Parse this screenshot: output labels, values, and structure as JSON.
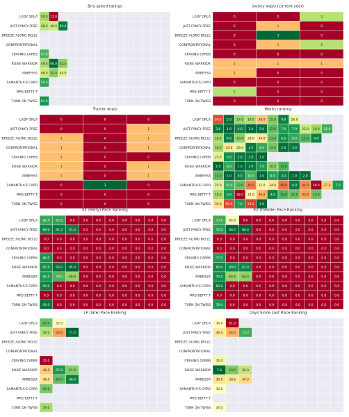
{
  "colormap": [
    "#a50026",
    "#d73027",
    "#f46d43",
    "#fdae61",
    "#fee08b",
    "#ffffbf",
    "#d9ef8b",
    "#a6d96a",
    "#66bd63",
    "#1a9850",
    "#006837"
  ],
  "chart_data": [
    {
      "type": "heatmap",
      "title": "Bris speed ratings",
      "categories": [
        "LADY ORLA",
        "JUST FANCY FREE",
        "BREEZE ALONG BELLE",
        "CONFRONTATIONAL",
        "CRAVING CARBS",
        "ROSIE WARRIOR",
        "AMBESSA",
        "SAMANTHA'S CAPO",
        "MRS BETTY T",
        "TURN ON TWISS"
      ],
      "values": [
        [
          50,
          13
        ],
        [
          48,
          46,
          64
        ],
        [],
        [],
        [
          57
        ],
        [
          49,
          66,
          52
        ],
        [
          46,
          52,
          44
        ],
        [
          59
        ],
        [],
        [
          61
        ]
      ],
      "value_labels": [
        [
          "50.0",
          "13.0"
        ],
        [
          "48.0",
          "46.0",
          "64.0"
        ],
        [],
        [],
        [
          "57.0"
        ],
        [
          "49.0",
          "66.0",
          "52.0"
        ],
        [
          "46.0",
          "52.0",
          "44.0"
        ],
        [
          "59.0"
        ],
        [],
        [
          "61.0"
        ]
      ]
    },
    {
      "type": "heatmap",
      "title": "Jockey w/p/s (current year)",
      "categories": [
        "LADY ORLA",
        "JUST FANCY FREE",
        "BREEZE ALONG BELLE",
        "CONFRONTATIONAL",
        "CRAVING CARBS",
        "ROSIE WARRIOR",
        "AMBESSA",
        "SAMANTHA'S CAPO",
        "MRS BETTY T",
        "TURN ON TWISS"
      ],
      "values": [
        [
          0,
          0,
          2
        ],
        [
          0,
          1,
          0
        ],
        [
          0,
          3,
          0
        ],
        [
          0,
          1,
          2
        ],
        [
          0,
          0,
          0
        ],
        [
          1,
          1,
          1
        ],
        [
          1,
          0,
          0
        ],
        [
          0,
          0,
          0
        ],
        [
          2,
          0,
          0
        ],
        [
          0,
          0,
          0
        ]
      ]
    },
    {
      "type": "heatmap",
      "title": "Trainer w/p/s",
      "categories": [
        "LADY ORLA",
        "JUST FANCY FREE",
        "BREEZE ALONG BELLE",
        "CONFRONTATIONAL",
        "CRAVING CARBS",
        "ROSIE WARRIOR",
        "AMBESSA",
        "SAMANTHA'S CAPO",
        "MRS BETTY T",
        "TURN ON TWISS"
      ],
      "values": [
        [
          0,
          0,
          0
        ],
        [
          0,
          0,
          1
        ],
        [
          1,
          0,
          1
        ],
        [
          1,
          0,
          1
        ],
        [
          1,
          0,
          0
        ],
        [
          1,
          0,
          1
        ],
        [
          1,
          0,
          1
        ],
        [
          0,
          3,
          0
        ],
        [
          0,
          0,
          0
        ],
        [
          0,
          0,
          0
        ]
      ]
    },
    {
      "type": "heatmap",
      "title": "Works ranking",
      "reverse": true,
      "categories": [
        "LADY ORLA",
        "JUST FANCY FREE",
        "BREEZE ALONG BELLE",
        "CONFRONTATIONAL",
        "CRAVING CARBS",
        "ROSIE WARRIOR",
        "AMBESSA",
        "SAMANTHA'S CAPO",
        "MRS BETTY T",
        "TURN ON TWISS"
      ],
      "values": [
        [
          50,
          2,
          17,
          19,
          38,
          15,
          4,
          26
        ],
        [
          3,
          1,
          4,
          1,
          2,
          12,
          7,
          7,
          22,
          18,
          10
        ],
        [
          18,
          4,
          16,
          28,
          34,
          13,
          6,
          9,
          11,
          4
        ],
        [
          18,
          34,
          26,
          3,
          9,
          14,
          2,
          3
        ],
        [
          25,
          6,
          3,
          3,
          1
        ],
        [
          1,
          9,
          1,
          3,
          7,
          16,
          11
        ],
        [
          12,
          1,
          4,
          10,
          1,
          8,
          4,
          1,
          2
        ],
        [
          25,
          10,
          13,
          45,
          32,
          34,
          46,
          4,
          44,
          58,
          37,
          7
        ],
        [
          18,
          6,
          58,
          31,
          40,
          4,
          11,
          13,
          42,
          13
        ],
        [
          35,
          50,
          7,
          51,
          1
        ]
      ],
      "value_labels": [
        [
          "50.0",
          "2.0",
          "17.0",
          "19.0",
          "38.0",
          "15.0",
          "4.0",
          "26.0"
        ],
        [
          "3.0",
          "1.0",
          "4.0",
          "1.0",
          "2.0",
          "12.0",
          "7.0",
          "7.0",
          "22.0",
          "18.0",
          "10.0"
        ],
        [
          "18.0",
          "4.0",
          "16.0",
          "28.0",
          "34.0",
          "13.0",
          "6.0",
          "9.0",
          "11.0",
          "4.0"
        ],
        [
          "18.0",
          "34.0",
          "26.0",
          "3.0",
          "9.0",
          "14.0",
          "2.0",
          "3.0"
        ],
        [
          "25.0",
          "6.0",
          "3.0",
          "3.0",
          "1.0"
        ],
        [
          "1.0",
          "9.0",
          "1.0",
          "3.0",
          "7.0",
          "16.0",
          "11.0"
        ],
        [
          "12.0",
          "1.0",
          "4.0",
          "10.0",
          "1.0",
          "8.0",
          "4.0",
          "1.0",
          "2.0"
        ],
        [
          "25.0",
          "10.0",
          "13.0",
          "45.0",
          "32.0",
          "34.0",
          "46.0",
          "4.0",
          "44.0",
          "58.0",
          "37.0",
          "7.0"
        ],
        [
          "18.0",
          "6.0",
          "58.0",
          "31.0",
          "40.0",
          "4.0",
          "11.0",
          "13.0",
          "42.0",
          "13.0"
        ],
        [
          "35.0",
          "50.0",
          "7.0",
          "51.0",
          "1.0"
        ]
      ]
    },
    {
      "type": "heatmap",
      "title": "E1 (early) Pace Ranking",
      "categories": [
        "LADY ORLA",
        "JUST FANCY FREE",
        "BREEZE ALONG BELLE",
        "CONFRONTATIONAL",
        "CRAVING CARBS",
        "ROSIE WARRIOR",
        "AMBESSA",
        "SAMANTHA'S CAPO",
        "MRS BETTY T",
        "TURN ON TWISS"
      ],
      "values": [
        [
          82,
          83,
          0,
          0,
          0,
          0,
          0,
          0,
          0,
          0
        ],
        [
          89,
          91,
          91,
          0,
          0,
          0,
          0,
          0,
          0,
          0
        ],
        [
          0,
          0,
          0,
          0,
          0,
          0,
          0,
          0,
          0,
          0
        ],
        [
          0,
          0,
          0,
          0,
          0,
          0,
          0,
          0,
          0,
          0
        ],
        [
          86,
          0,
          0,
          0,
          0,
          0,
          0,
          0,
          0,
          0
        ],
        [
          87,
          93,
          95,
          0,
          0,
          0,
          0,
          0,
          0,
          0
        ],
        [
          85,
          79,
          69,
          0,
          0,
          0,
          0,
          0,
          0,
          0
        ],
        [
          90,
          0,
          0,
          0,
          0,
          0,
          0,
          0,
          0,
          0
        ],
        [
          0,
          0,
          0,
          0,
          0,
          0,
          0,
          0,
          0,
          0
        ],
        [
          92,
          0,
          0,
          0,
          0,
          0,
          0,
          0,
          0,
          0
        ]
      ],
      "value_labels": [
        [
          "82.0",
          "83.0",
          "0.0",
          "0.0",
          "0.0",
          "0.0",
          "0.0",
          "0.0",
          "0.0",
          "0.0"
        ],
        [
          "89.0",
          "91.0",
          "91.0",
          "0.0",
          "0.0",
          "0.0",
          "0.0",
          "0.0",
          "0.0",
          "0.0"
        ],
        [
          "0.0",
          "0.0",
          "0.0",
          "0.0",
          "0.0",
          "0.0",
          "0.0",
          "0.0",
          "0.0",
          "0.0"
        ],
        [
          "0.0",
          "0.0",
          "0.0",
          "0.0",
          "0.0",
          "0.0",
          "0.0",
          "0.0",
          "0.0",
          "0.0"
        ],
        [
          "86.0",
          "0.0",
          "0.0",
          "0.0",
          "0.0",
          "0.0",
          "0.0",
          "0.0",
          "0.0",
          "0.0"
        ],
        [
          "87.0",
          "93.0",
          "95.0",
          "0.0",
          "0.0",
          "0.0",
          "0.0",
          "0.0",
          "0.0",
          "0.0"
        ],
        [
          "85.0",
          "79.0",
          "69.0",
          "0.0",
          "0.0",
          "0.0",
          "0.0",
          "0.0",
          "0.0",
          "0.0"
        ],
        [
          "90.0",
          "0.0",
          "0.0",
          "0.0",
          "0.0",
          "0.0",
          "0.0",
          "0.0",
          "0.0",
          "0.0"
        ],
        [
          "0.0",
          "0.0",
          "0.0",
          "0.0",
          "0.0",
          "0.0",
          "0.0",
          "0.0",
          "0.0",
          "0.0"
        ],
        [
          "92.0",
          "0.0",
          "0.0",
          "0.0",
          "0.0",
          "0.0",
          "0.0",
          "0.0",
          "0.0",
          "0.0"
        ]
      ]
    },
    {
      "type": "heatmap",
      "title": "E2 (middle) Pace Ranking",
      "categories": [
        "LADY ORLA",
        "JUST FANCY FREE",
        "BREEZE ALONG BELLE",
        "CONFRONTATIONAL",
        "CRAVING CARBS",
        "ROSIE WARRIOR",
        "AMBESSA",
        "SAMANTHA'S CAPO",
        "MRS BETTY T",
        "TURN ON TWISS"
      ],
      "values": [
        [
          73,
          45,
          0,
          0,
          0,
          0,
          0,
          0,
          0,
          0
        ],
        [
          76,
          86,
          86,
          0,
          0,
          0,
          0,
          0,
          0,
          0
        ],
        [
          0,
          0,
          0,
          0,
          0,
          0,
          0,
          0,
          0,
          0
        ],
        [
          0,
          0,
          0,
          0,
          0,
          0,
          0,
          0,
          0,
          0
        ],
        [
          77,
          0,
          0,
          0,
          0,
          0,
          0,
          0,
          0,
          0
        ],
        [
          80,
          80,
          81,
          0,
          0,
          0,
          0,
          0,
          0,
          0
        ],
        [
          79,
          62,
          63,
          0,
          0,
          0,
          0,
          0,
          0,
          0
        ],
        [
          83,
          0,
          0,
          0,
          0,
          0,
          0,
          0,
          0,
          0
        ],
        [
          0,
          0,
          0,
          0,
          0,
          0,
          0,
          0,
          0,
          0
        ],
        [
          78,
          0,
          0,
          0,
          0,
          0,
          0,
          0,
          0,
          0
        ]
      ],
      "value_labels": [
        [
          "73.0",
          "45.0",
          "0.0",
          "0.0",
          "0.0",
          "0.0",
          "0.0",
          "0.0",
          "0.0",
          "0.0"
        ],
        [
          "76.0",
          "86.0",
          "86.0",
          "0.0",
          "0.0",
          "0.0",
          "0.0",
          "0.0",
          "0.0",
          "0.0"
        ],
        [
          "0.0",
          "0.0",
          "0.0",
          "0.0",
          "0.0",
          "0.0",
          "0.0",
          "0.0",
          "0.0",
          "0.0"
        ],
        [
          "0.0",
          "0.0",
          "0.0",
          "0.0",
          "0.0",
          "0.0",
          "0.0",
          "0.0",
          "0.0",
          "0.0"
        ],
        [
          "77.0",
          "0.0",
          "0.0",
          "0.0",
          "0.0",
          "0.0",
          "0.0",
          "0.0",
          "0.0",
          "0.0"
        ],
        [
          "80.0",
          "80.0",
          "81.0",
          "0.0",
          "0.0",
          "0.0",
          "0.0",
          "0.0",
          "0.0",
          "0.0"
        ],
        [
          "79.0",
          "62.0",
          "63.0",
          "0.0",
          "0.0",
          "0.0",
          "0.0",
          "0.0",
          "0.0",
          "0.0"
        ],
        [
          "83.0",
          "0.0",
          "0.0",
          "0.0",
          "0.0",
          "0.0",
          "0.0",
          "0.0",
          "0.0",
          "0.0"
        ],
        [
          "0.0",
          "0.0",
          "0.0",
          "0.0",
          "0.0",
          "0.0",
          "0.0",
          "0.0",
          "0.0",
          "0.0"
        ],
        [
          "78.0",
          "0.0",
          "0.0",
          "0.0",
          "0.0",
          "0.0",
          "0.0",
          "0.0",
          "0.0",
          "0.0"
        ]
      ]
    },
    {
      "type": "heatmap",
      "title": "LP (late) Pace Ranking",
      "categories": [
        "LADY ORLA",
        "JUST FANCY FREE",
        "BREEZE ALONG BELLE",
        "CONFRONTATIONAL",
        "CRAVING CARBS",
        "ROSIE WARRIOR",
        "AMBESSA",
        "SAMANTHA'S CAPO",
        "MRS BETTY T",
        "TURN ON TWISS"
      ],
      "values": [
        [
          63,
          52
        ],
        [
          58,
          43,
          71
        ],
        [],
        [],
        [
          32
        ],
        [
          46,
          67,
          61
        ],
        [
          48,
          63,
          69
        ],
        [
          62
        ],
        [],
        [
          59
        ]
      ],
      "value_labels": [
        [
          "63.0",
          "52.0"
        ],
        [
          "58.0",
          "43.0",
          "71.0"
        ],
        [],
        [],
        [
          "32.0"
        ],
        [
          "46.0",
          "67.0",
          "61.0"
        ],
        [
          "48.0",
          "63.0",
          "69.0"
        ],
        [
          "62.0"
        ],
        [],
        [
          "59.0"
        ]
      ]
    },
    {
      "type": "heatmap",
      "title": "Days Since Last Race Ranking",
      "reverse": true,
      "categories": [
        "LADY ORLA",
        "JUST FANCY FREE",
        "BREEZE ALONG BELLE",
        "CONFRONTATIONAL",
        "CRAVING CARBS",
        "ROSIE WARRIOR",
        "AMBESSA",
        "SAMANTHA'S CAPO",
        "MRS BETTY T",
        "TURN ON TWISS"
      ],
      "values": [
        [
          34,
          61
        ],
        [
          38,
          44,
          15
        ],
        [],
        [],
        [
          32
        ],
        [
          7,
          20,
          26
        ],
        [
          39,
          38,
          40
        ],
        [
          34
        ],
        [],
        [
          34
        ]
      ],
      "value_labels": [
        [
          "34.0",
          "61.0"
        ],
        [
          "38.0",
          "44.0",
          "15.0"
        ],
        [],
        [],
        [
          "32.0"
        ],
        [
          "7.0",
          "20.0",
          "26.0"
        ],
        [
          "39.0",
          "38.0",
          "40.0"
        ],
        [
          "34.0"
        ],
        [],
        [
          "34.0"
        ]
      ]
    }
  ]
}
